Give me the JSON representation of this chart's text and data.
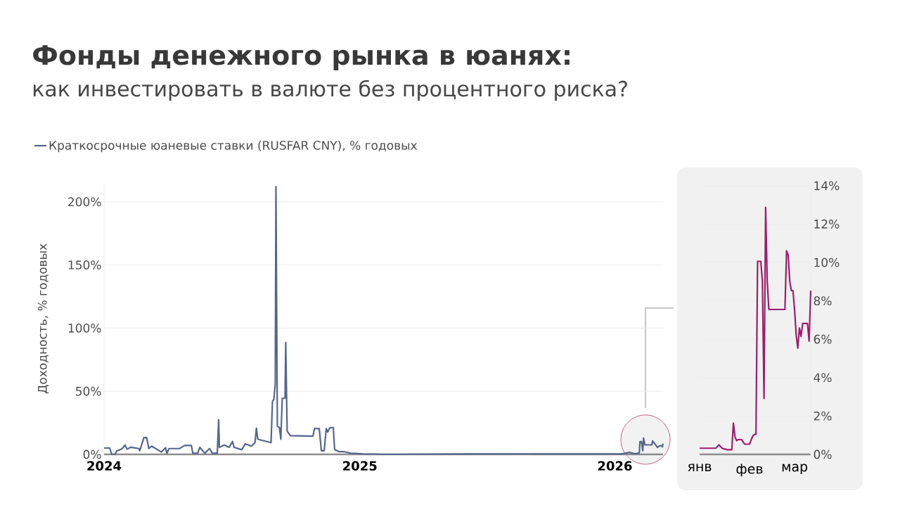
{
  "chart_data": [
    {
      "type": "line",
      "title": "Фонды денежного рынка в юанях:",
      "subtitle": "как инвестировать в валюте без процентного риска?",
      "ylabel": "Доходность, % годовых",
      "legend": "top",
      "grid": "y",
      "x": [
        "2024-01-01",
        "2024-01-09",
        "2024-01-12",
        "2024-01-17",
        "2024-01-19",
        "2024-01-24",
        "2024-01-27",
        "2024-01-31",
        "2024-02-03",
        "2024-02-08",
        "2024-02-20",
        "2024-02-21",
        "2024-02-27",
        "2024-03-02",
        "2024-03-05",
        "2024-03-09",
        "2024-03-23",
        "2024-03-29",
        "2024-03-31",
        "2024-04-03",
        "2024-04-18",
        "2024-04-22",
        "2024-04-25",
        "2024-05-05",
        "2024-05-07",
        "2024-05-14",
        "2024-05-17",
        "2024-05-24",
        "2024-05-31",
        "2024-06-04",
        "2024-06-11",
        "2024-06-13",
        "2024-06-14",
        "2024-06-21",
        "2024-06-28",
        "2024-07-03",
        "2024-07-05",
        "2024-07-16",
        "2024-07-21",
        "2024-07-30",
        "2024-08-04",
        "2024-08-06",
        "2024-08-08",
        "2024-08-27",
        "2024-08-29",
        "2024-08-31",
        "2024-09-02",
        "2024-09-03",
        "2024-09-05",
        "2024-09-08",
        "2024-09-10",
        "2024-09-12",
        "2024-09-16",
        "2024-09-17",
        "2024-09-19",
        "2024-09-21",
        "2024-09-24",
        "2024-10-26",
        "2024-10-28",
        "2024-11-04",
        "2024-11-07",
        "2024-11-11",
        "2024-11-14",
        "2024-11-16",
        "2024-11-19",
        "2024-11-24",
        "2024-11-26",
        "2024-12-02",
        "2024-12-09",
        "2024-12-19",
        "2025-01-05",
        "2025-02-07",
        "2025-06-01",
        "2025-09-01",
        "2025-12-01",
        "2026-01-11",
        "2026-01-22",
        "2026-01-29",
        "2026-02-05",
        "2026-02-06",
        "2026-02-08",
        "2026-02-10",
        "2026-02-11",
        "2026-02-13",
        "2026-02-23",
        "2026-02-24",
        "2026-02-27",
        "2026-03-03",
        "2026-03-06",
        "2026-03-09",
        "2026-03-10",
        "2026-03-11"
      ],
      "series": [
        {
          "name": "Краткосрочные юаневые ставки (RUSFAR CNY), % годовых",
          "color": "#55668c",
          "values": [
            5.0,
            5.0,
            0,
            0,
            2.8,
            3.7,
            4.6,
            7.4,
            4.1,
            5.6,
            4.6,
            2.8,
            13.3,
            13.3,
            4.6,
            6.5,
            1.9,
            5.2,
            0.9,
            4.6,
            4.6,
            5.9,
            7.0,
            7.0,
            0.9,
            0.9,
            5.6,
            0.9,
            4.6,
            0.9,
            0.9,
            27.4,
            5.6,
            7.4,
            5.6,
            10.2,
            5.6,
            3.7,
            8.3,
            6.5,
            9.3,
            20.7,
            12.0,
            9.3,
            42.2,
            43.5,
            55.6,
            212,
            22.2,
            21.3,
            12.0,
            44.4,
            44.4,
            88.5,
            18.5,
            16.7,
            14.8,
            14.4,
            20.4,
            20.4,
            2.8,
            2.8,
            20.4,
            17.6,
            21.0,
            21.3,
            3.7,
            2.2,
            2.2,
            0.9,
            0.4,
            0,
            0.3,
            0.4,
            0.3,
            0.3,
            1.6,
            0.5,
            1.0,
            10.1,
            10.1,
            2.9,
            12.9,
            7.5,
            7.5,
            10.6,
            8.5,
            5.5,
            6.8,
            6.8,
            5.9,
            8.5
          ]
        }
      ],
      "xlim": [
        "2024-01-01",
        "2026-03-11"
      ],
      "xticks": [
        "2024",
        "2025",
        "2026"
      ],
      "ylim": [
        0,
        215
      ],
      "yticks": [
        {
          "value": 0,
          "label": "0%"
        },
        {
          "value": 50,
          "label": "50%"
        },
        {
          "value": 100,
          "label": "100%"
        },
        {
          "value": 150,
          "label": "150%"
        },
        {
          "value": 200,
          "label": "200%"
        }
      ]
    },
    {
      "type": "line",
      "grid": "y",
      "categories": [
        "янв",
        null,
        null,
        null,
        null,
        null,
        null,
        null,
        null,
        null,
        null,
        null,
        null,
        null,
        null,
        null,
        null,
        null,
        null,
        null,
        null,
        null,
        null,
        null,
        null,
        null,
        null,
        null,
        null,
        null,
        null,
        "фев",
        null,
        null,
        null,
        null,
        null,
        null,
        null,
        null,
        null,
        null,
        null,
        null,
        null,
        null,
        null,
        null,
        null,
        null,
        null,
        null,
        null,
        null,
        null,
        null,
        null,
        null,
        null,
        "мар",
        null,
        null,
        null,
        null,
        null,
        null,
        null,
        null,
        null,
        null
      ],
      "series": [
        {
          "color": "#9b1f6c",
          "values": [
            0.32,
            0.32,
            0.32,
            0.32,
            0.32,
            0.32,
            0.32,
            0.32,
            0.32,
            0.32,
            0.32,
            0.4,
            0.49,
            0.4,
            0.32,
            0.28,
            0.28,
            0.24,
            0.24,
            0.24,
            0.24,
            1.63,
            0.9,
            0.71,
            0.77,
            0.77,
            0.77,
            0.65,
            0.53,
            0.53,
            0.53,
            0.53,
            0.75,
            0.95,
            1.04,
            1.04,
            10.06,
            10.06,
            10.06,
            9.0,
            2.91,
            12.87,
            9.0,
            7.55,
            7.55,
            7.55,
            7.55,
            7.55,
            7.55,
            7.55,
            7.55,
            7.55,
            7.55,
            7.55,
            10.61,
            10.37,
            9.0,
            8.53,
            8.53,
            7.5,
            6.2,
            5.54,
            6.58,
            6.15,
            6.82,
            6.82,
            6.82,
            6.82,
            5.9,
            8.53
          ]
        }
      ],
      "ylim": [
        0,
        14
      ],
      "yticks": [
        {
          "value": 0,
          "label": "0%"
        },
        {
          "value": 2,
          "label": "2%"
        },
        {
          "value": 4,
          "label": "4%"
        },
        {
          "value": 6,
          "label": "6%"
        },
        {
          "value": 8,
          "label": "8%"
        },
        {
          "value": 10,
          "label": "10%"
        },
        {
          "value": 12,
          "label": "12%"
        },
        {
          "value": 14,
          "label": "14%"
        }
      ]
    }
  ]
}
